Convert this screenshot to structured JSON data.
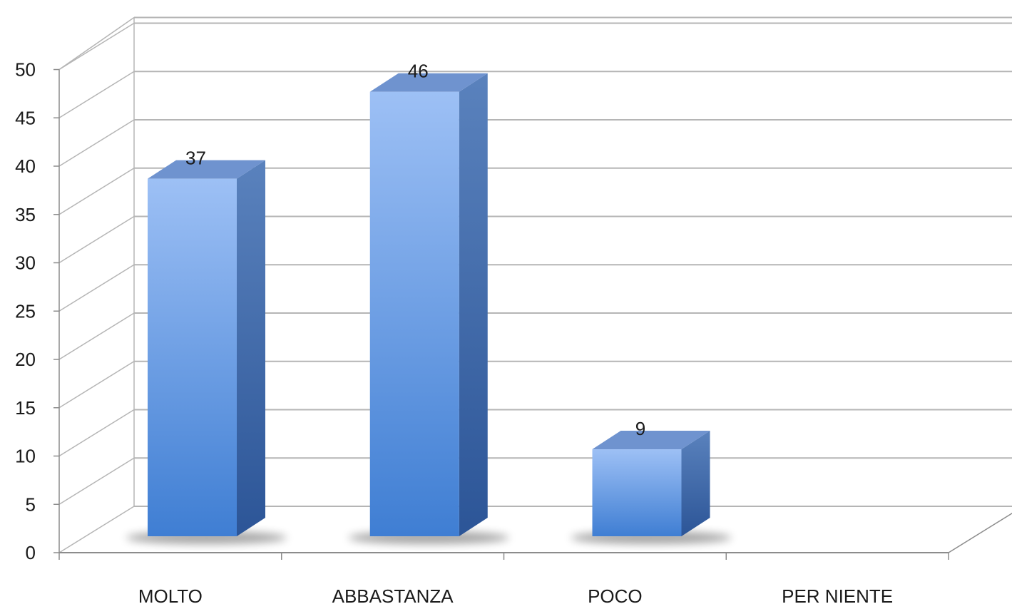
{
  "chart_data": {
    "type": "bar",
    "categories": [
      "MOLTO",
      "ABBASTANZA",
      "POCO",
      "PER NIENTE"
    ],
    "values": [
      37,
      46,
      9,
      null
    ],
    "data_labels": [
      "37",
      "46",
      "9",
      ""
    ],
    "ylim": [
      0,
      50
    ],
    "yticks": [
      0,
      5,
      10,
      15,
      20,
      25,
      30,
      35,
      40,
      45,
      50
    ],
    "title": "",
    "xlabel": "",
    "ylabel": "",
    "grid": true,
    "style": "3d-column",
    "colors": {
      "bar_top": "#9dc0f5",
      "bar_bottom": "#3f7ed3",
      "bar_side_top": "#5a82bd",
      "bar_side_bottom": "#2c5597",
      "bar_cap": "#6f93cf",
      "gridline": "#b5b5b5",
      "axis": "#8c8c8c"
    }
  }
}
